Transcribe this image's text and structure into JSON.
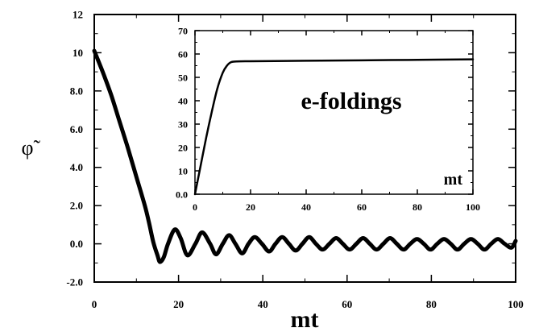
{
  "chart_data": [
    {
      "type": "line",
      "xlabel": "mt",
      "ylabel": "φ̃",
      "xlim": [
        0,
        100
      ],
      "ylim": [
        -2,
        12
      ],
      "x_ticks": [
        0,
        20,
        40,
        60,
        80,
        100
      ],
      "x_tick_labels": [
        "0",
        "20",
        "40",
        "60",
        "80",
        "100"
      ],
      "y_ticks": [
        -2,
        0,
        2,
        4,
        6,
        8,
        10,
        12
      ],
      "y_tick_labels": [
        "-2.0",
        "0.0",
        "2.0",
        "4.0",
        "6.0",
        "8.0",
        "10",
        "12"
      ],
      "grid": false,
      "series": [
        {
          "values": [
            [
              0,
              10.1
            ],
            [
              2,
              9.0
            ],
            [
              4,
              7.8
            ],
            [
              6,
              6.4
            ],
            [
              8,
              5.0
            ],
            [
              10,
              3.5
            ],
            [
              12,
              2.0
            ],
            [
              13,
              1.1
            ],
            [
              14,
              0.1
            ],
            [
              15,
              -0.6
            ],
            [
              15.6,
              -0.95
            ],
            [
              16.5,
              -0.7
            ],
            [
              17.5,
              0.0
            ],
            [
              19.1,
              0.75
            ],
            [
              20.5,
              0.3
            ],
            [
              22.1,
              -0.6
            ],
            [
              24,
              0.0
            ],
            [
              25.6,
              0.6
            ],
            [
              27.5,
              0.0
            ],
            [
              28.9,
              -0.55
            ],
            [
              30.5,
              0.0
            ],
            [
              32.0,
              0.45
            ],
            [
              33.5,
              0.0
            ],
            [
              35.1,
              -0.5
            ],
            [
              36.6,
              0.0
            ],
            [
              38.1,
              0.35
            ],
            [
              39.8,
              0.0
            ],
            [
              41.5,
              -0.4
            ],
            [
              43,
              0.0
            ],
            [
              44.6,
              0.35
            ],
            [
              46.2,
              0.0
            ],
            [
              47.8,
              -0.35
            ],
            [
              49.4,
              0.0
            ],
            [
              51.0,
              0.35
            ],
            [
              52.6,
              0.0
            ],
            [
              54.2,
              -0.3
            ],
            [
              55.8,
              0.0
            ],
            [
              57.4,
              0.3
            ],
            [
              59,
              0.0
            ],
            [
              60.6,
              -0.3
            ],
            [
              62.2,
              0.0
            ],
            [
              63.8,
              0.3
            ],
            [
              65.4,
              0.0
            ],
            [
              67.0,
              -0.3
            ],
            [
              68.6,
              0.0
            ],
            [
              70.2,
              0.3
            ],
            [
              71.8,
              0.0
            ],
            [
              73.4,
              -0.3
            ],
            [
              75,
              0.0
            ],
            [
              76.6,
              0.25
            ],
            [
              78.2,
              0.0
            ],
            [
              79.8,
              -0.3
            ],
            [
              81.4,
              0.0
            ],
            [
              83.0,
              0.25
            ],
            [
              84.6,
              0.0
            ],
            [
              86.2,
              -0.3
            ],
            [
              87.8,
              0.0
            ],
            [
              89.4,
              0.25
            ],
            [
              91,
              0.0
            ],
            [
              92.6,
              -0.3
            ],
            [
              94.2,
              0.0
            ],
            [
              95.8,
              0.25
            ],
            [
              97.4,
              0.0
            ],
            [
              99,
              -0.2
            ],
            [
              100,
              0.15
            ]
          ]
        }
      ]
    },
    {
      "type": "line",
      "xlabel": "mt",
      "ylabel": "",
      "annotation": "e-foldings",
      "xlim": [
        0,
        100
      ],
      "ylim": [
        0,
        70
      ],
      "x_ticks": [
        0,
        20,
        40,
        60,
        80,
        100
      ],
      "x_tick_labels": [
        "0",
        "20",
        "40",
        "60",
        "80",
        "100"
      ],
      "y_ticks": [
        0,
        10,
        20,
        30,
        40,
        50,
        60,
        70
      ],
      "y_tick_labels": [
        "0.0",
        "10",
        "20",
        "30",
        "40",
        "50",
        "60",
        "70"
      ],
      "grid": false,
      "series": [
        {
          "values": [
            [
              0,
              0
            ],
            [
              2,
              12
            ],
            [
              4,
              24
            ],
            [
              6,
              35
            ],
            [
              8,
              45
            ],
            [
              10,
              52
            ],
            [
              11.5,
              55
            ],
            [
              13,
              56.5
            ],
            [
              15,
              56.8
            ],
            [
              20,
              56.9
            ],
            [
              40,
              57.1
            ],
            [
              60,
              57.3
            ],
            [
              80,
              57.5
            ],
            [
              100,
              57.7
            ]
          ]
        }
      ]
    }
  ]
}
